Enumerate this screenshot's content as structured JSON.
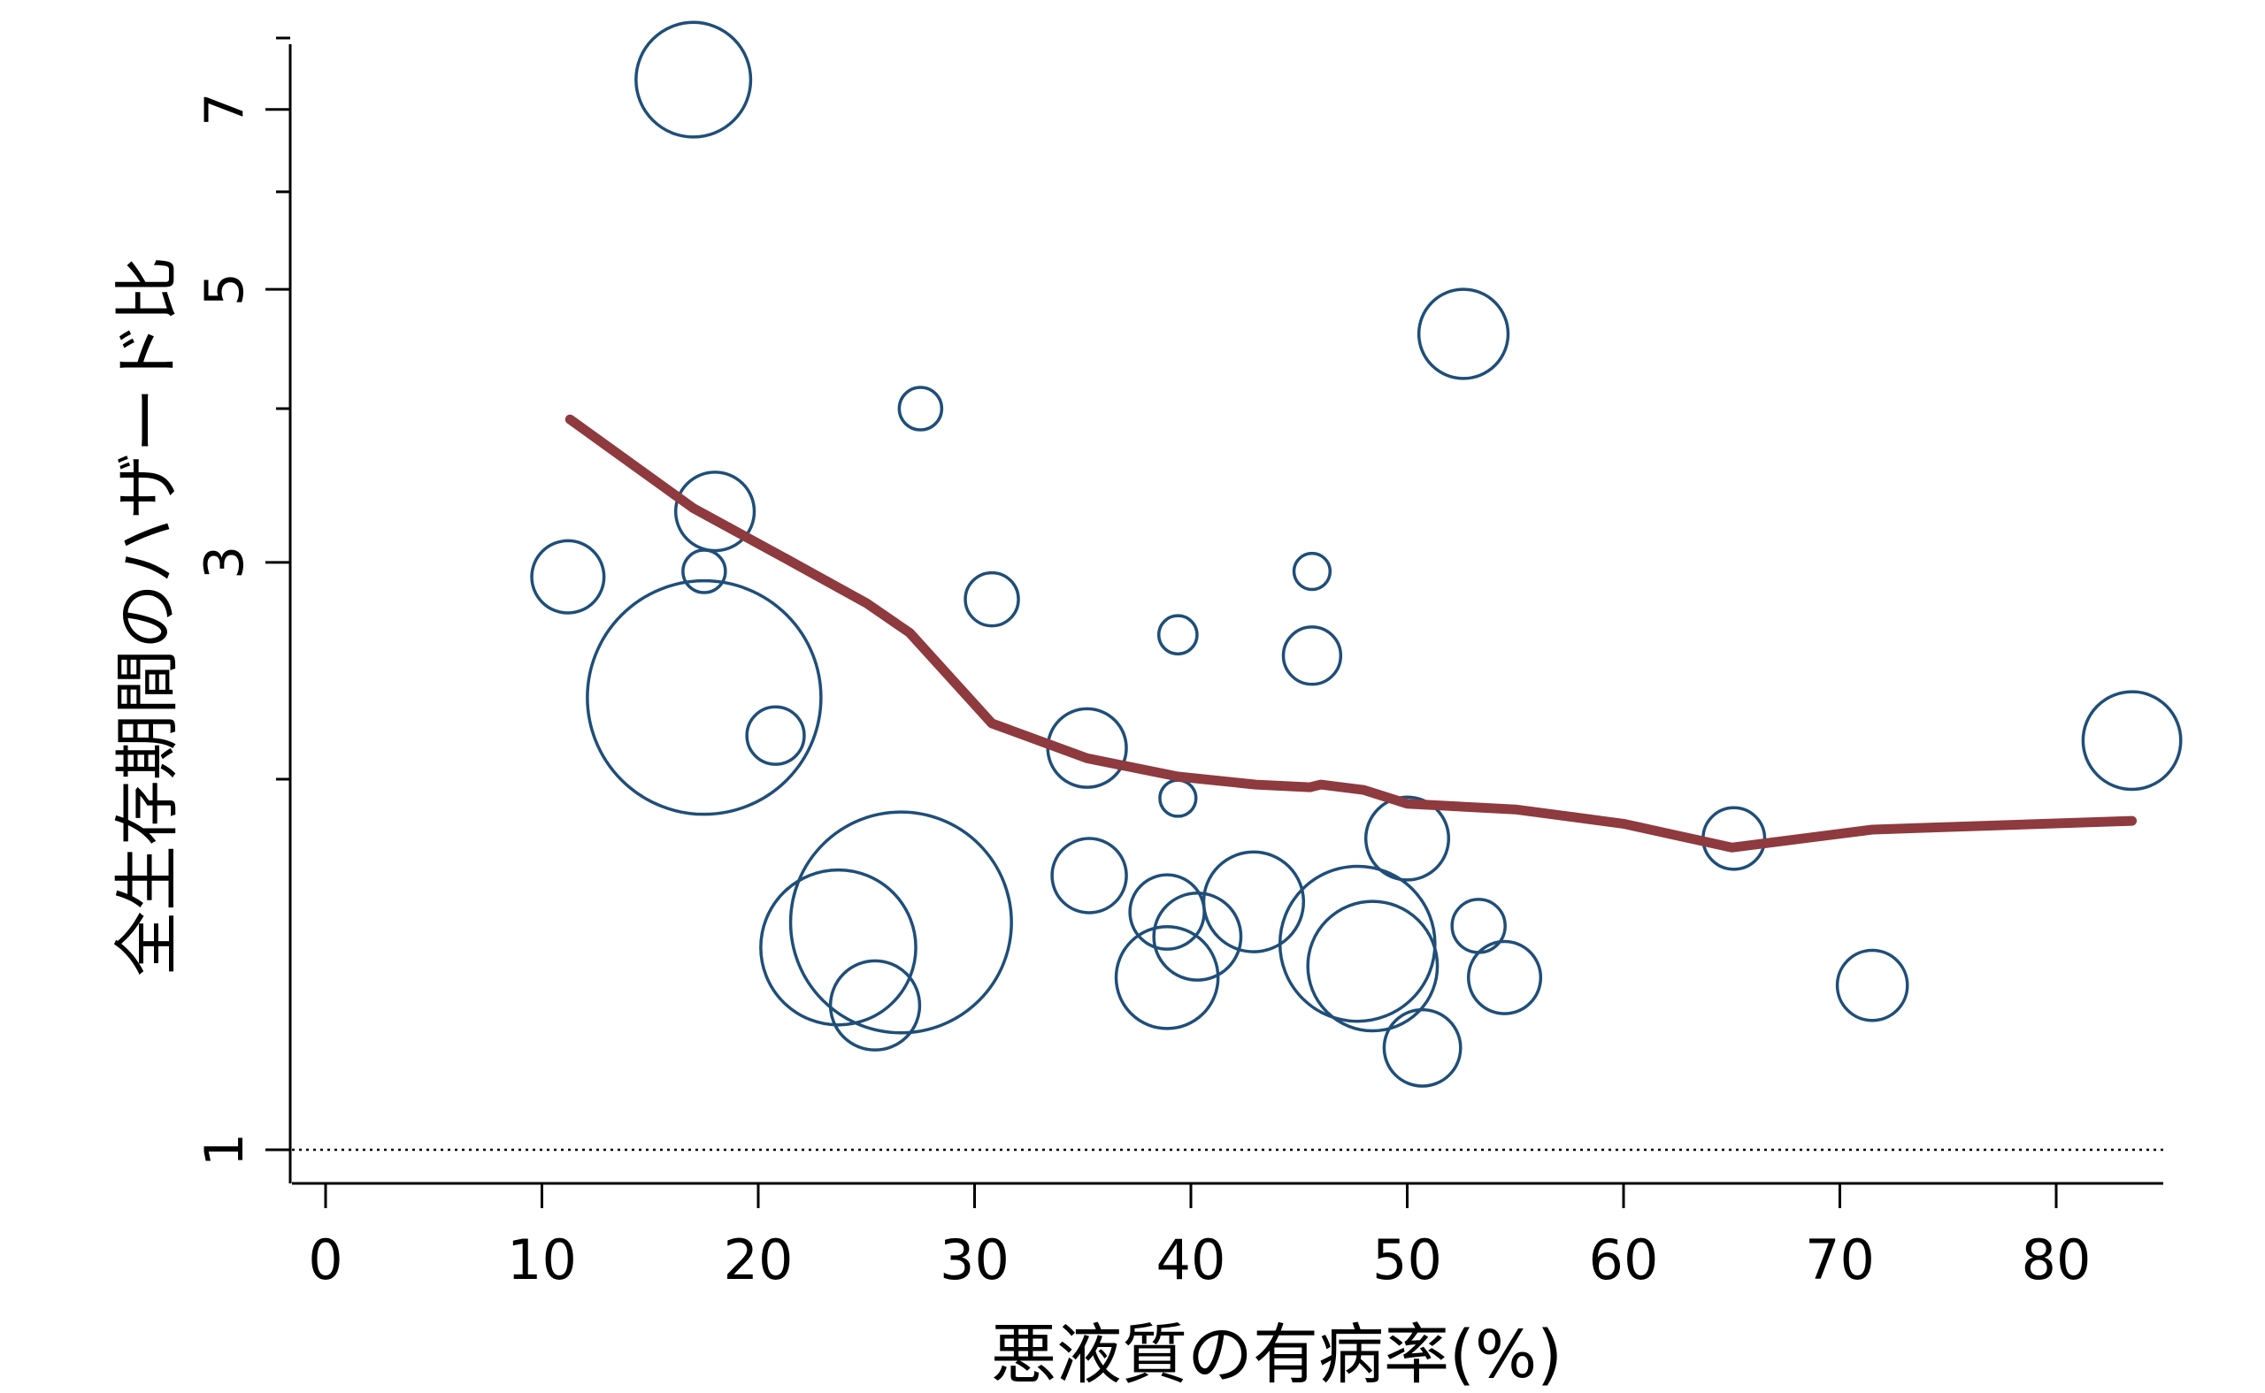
{
  "chart_data": {
    "type": "scatter",
    "subtype": "bubble",
    "xlabel": "悪液質の有病率(%)",
    "ylabel": "全生存期間のハザード比",
    "xlim": [
      0,
      85
    ],
    "ylim": [
      1,
      9
    ],
    "yscale": "log",
    "x_ticks": [
      0,
      10,
      20,
      30,
      40,
      50,
      60,
      70,
      80
    ],
    "y_ticks": [
      1,
      3,
      5,
      7,
      9
    ],
    "y_minor_ticks": [
      2,
      4,
      6,
      8
    ],
    "reference_line": {
      "y": 1,
      "style": "dotted"
    },
    "grid": false,
    "colors": {
      "bubble": "#1f4e79",
      "trend": "#8e3a3e",
      "axis": "#000000"
    },
    "points": [
      {
        "x": 17.0,
        "y": 7.4,
        "size": 2.7
      },
      {
        "x": 52.6,
        "y": 4.6,
        "size": 2.1
      },
      {
        "x": 27.5,
        "y": 4.0,
        "size": 1.0
      },
      {
        "x": 18.0,
        "y": 3.3,
        "size": 1.85
      },
      {
        "x": 11.2,
        "y": 2.92,
        "size": 1.7
      },
      {
        "x": 17.5,
        "y": 2.95,
        "size": 1.0
      },
      {
        "x": 30.8,
        "y": 2.8,
        "size": 1.25
      },
      {
        "x": 45.6,
        "y": 2.95,
        "size": 0.85
      },
      {
        "x": 39.4,
        "y": 2.62,
        "size": 0.9
      },
      {
        "x": 45.6,
        "y": 2.52,
        "size": 1.35
      },
      {
        "x": 17.5,
        "y": 2.33,
        "size": 5.5
      },
      {
        "x": 20.8,
        "y": 2.17,
        "size": 1.35
      },
      {
        "x": 35.2,
        "y": 2.12,
        "size": 1.85
      },
      {
        "x": 83.5,
        "y": 2.15,
        "size": 2.3
      },
      {
        "x": 39.4,
        "y": 1.93,
        "size": 0.85
      },
      {
        "x": 50.0,
        "y": 1.79,
        "size": 1.95
      },
      {
        "x": 65.1,
        "y": 1.79,
        "size": 1.45
      },
      {
        "x": 35.3,
        "y": 1.67,
        "size": 1.75
      },
      {
        "x": 26.6,
        "y": 1.53,
        "size": 5.2
      },
      {
        "x": 42.9,
        "y": 1.59,
        "size": 2.35
      },
      {
        "x": 38.9,
        "y": 1.56,
        "size": 1.75
      },
      {
        "x": 40.3,
        "y": 1.49,
        "size": 2.05
      },
      {
        "x": 53.3,
        "y": 1.52,
        "size": 1.25
      },
      {
        "x": 23.7,
        "y": 1.46,
        "size": 3.65
      },
      {
        "x": 47.7,
        "y": 1.47,
        "size": 3.65
      },
      {
        "x": 48.4,
        "y": 1.41,
        "size": 3.05
      },
      {
        "x": 38.9,
        "y": 1.38,
        "size": 2.4
      },
      {
        "x": 54.5,
        "y": 1.38,
        "size": 1.7
      },
      {
        "x": 71.5,
        "y": 1.36,
        "size": 1.65
      },
      {
        "x": 25.4,
        "y": 1.31,
        "size": 2.1
      },
      {
        "x": 50.7,
        "y": 1.21,
        "size": 1.8
      }
    ],
    "series": [
      {
        "type": "line",
        "x": [
          11.3,
          17.0,
          21.0,
          25.0,
          27.0,
          30.8,
          35.2,
          39.4,
          43.0,
          45.5,
          46.0,
          48.0,
          50.0,
          55.0,
          60.0,
          65.0,
          71.5,
          83.5
        ],
        "y": [
          3.92,
          3.32,
          3.04,
          2.78,
          2.63,
          2.22,
          2.08,
          2.01,
          1.98,
          1.97,
          1.98,
          1.96,
          1.91,
          1.89,
          1.84,
          1.76,
          1.82,
          1.85
        ]
      }
    ]
  }
}
